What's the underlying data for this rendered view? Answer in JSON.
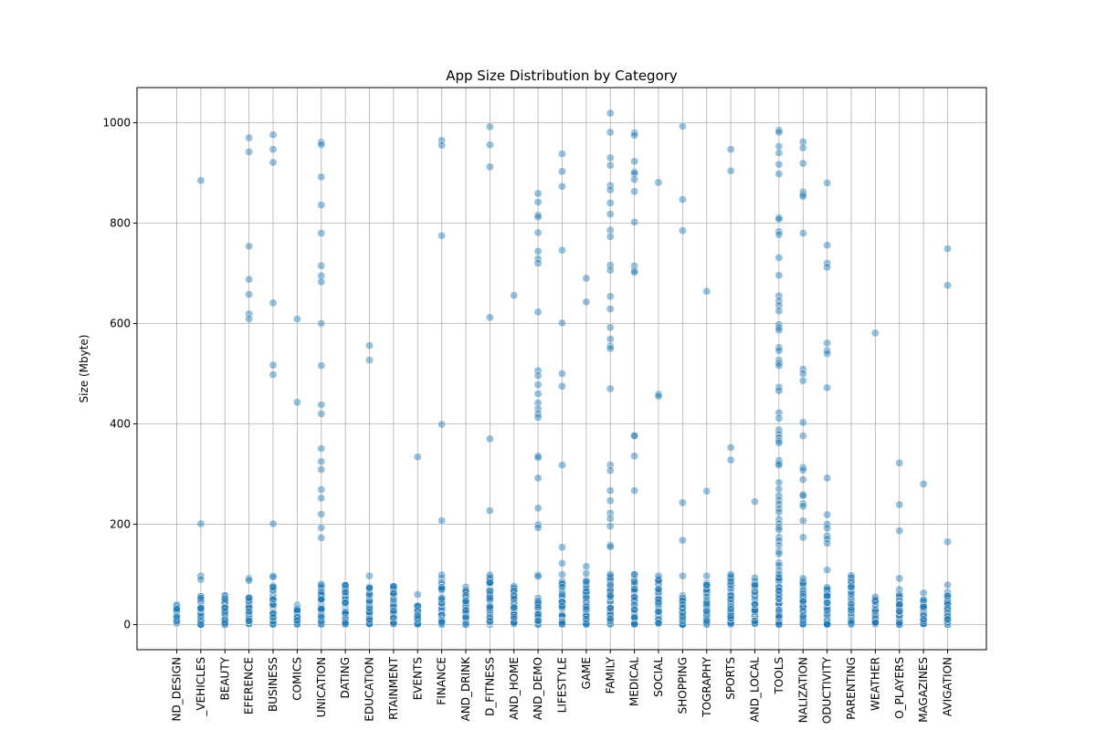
{
  "chart_data": {
    "type": "scatter",
    "title": "App Size Distribution by Category",
    "xlabel": "",
    "ylabel": "Size (Mbyte)",
    "ylim": [
      -50,
      1070
    ],
    "yticks": [
      0,
      200,
      400,
      600,
      800,
      1000
    ],
    "grid": true,
    "point_color": "#1f77b4",
    "categories": [
      "ART_AND_DESIGN",
      "AUTO_AND_VEHICLES",
      "BEAUTY",
      "BOOKS_AND_REFERENCE",
      "BUSINESS",
      "COMICS",
      "COMMUNICATION",
      "DATING",
      "EDUCATION",
      "ENTERTAINMENT",
      "EVENTS",
      "FINANCE",
      "FOOD_AND_DRINK",
      "HEALTH_AND_FITNESS",
      "HOUSE_AND_HOME",
      "LIBRARIES_AND_DEMO",
      "LIFESTYLE",
      "GAME",
      "FAMILY",
      "MEDICAL",
      "SOCIAL",
      "SHOPPING",
      "PHOTOGRAPHY",
      "SPORTS",
      "TRAVEL_AND_LOCAL",
      "TOOLS",
      "PERSONALIZATION",
      "PRODUCTIVITY",
      "PARENTING",
      "WEATHER",
      "VIDEO_PLAYERS",
      "NEWS_AND_MAGAZINES",
      "MAPS_AND_NAVIGATION"
    ],
    "tick_labels": [
      "ND_DESIGN",
      "_VEHICLES",
      "BEAUTY",
      "EFERENCE",
      "BUSINESS",
      "COMICS",
      "UNICATION",
      "DATING",
      "EDUCATION",
      "RTAINMENT",
      "EVENTS",
      "FINANCE",
      "AND_DRINK",
      "D_FITNESS",
      "AND_HOME",
      "AND_DEMO",
      "LIFESTYLE",
      "GAME",
      "FAMILY",
      "MEDICAL",
      "SOCIAL",
      "SHOPPING",
      "TOGRAPHY",
      "SPORTS",
      "AND_LOCAL",
      "TOOLS",
      "NALIZATION",
      "ODUCTIVITY",
      "PARENTING",
      "WEATHER",
      "O_PLAYERS",
      "MAGAZINES",
      "AVIGATION"
    ],
    "outliers": [
      [],
      [
        885,
        201,
        97,
        90
      ],
      [],
      [
        970,
        942,
        754,
        688,
        658,
        619,
        609,
        92,
        88
      ],
      [
        976,
        947,
        921,
        641,
        517,
        498,
        201,
        97,
        95
      ],
      [
        609,
        443
      ],
      [
        961,
        956,
        892,
        836,
        780,
        715,
        695,
        683,
        600,
        516,
        438,
        420,
        351,
        325,
        309,
        269,
        252,
        220,
        193,
        173
      ],
      [],
      [
        556,
        527,
        97
      ],
      [],
      [
        334,
        60
      ],
      [
        965,
        955,
        775,
        399,
        207,
        99
      ],
      [],
      [
        992,
        956,
        912,
        612,
        370,
        227,
        99
      ],
      [
        656
      ],
      [
        859,
        842,
        816,
        812,
        781,
        744,
        729,
        720,
        623,
        506,
        496,
        478,
        460,
        442,
        430,
        420,
        413,
        336,
        333,
        292,
        232,
        199,
        193,
        99,
        96
      ],
      [
        938,
        903,
        873,
        746,
        601,
        500,
        475,
        318,
        154,
        122,
        100
      ],
      [
        690,
        643,
        116,
        102
      ],
      [
        1019,
        981,
        930,
        915,
        875,
        866,
        840,
        818,
        786,
        773,
        716,
        706,
        654,
        629,
        592,
        569,
        555,
        550,
        470,
        318,
        307,
        267,
        247,
        222,
        211,
        196,
        158,
        155,
        100
      ],
      [
        980,
        975,
        923,
        902,
        899,
        887,
        863,
        802,
        715,
        705,
        702,
        377,
        376,
        336,
        267,
        100
      ],
      [
        881,
        459,
        455,
        97
      ],
      [
        993,
        847,
        785,
        243,
        168,
        97
      ],
      [
        664,
        266,
        97
      ],
      [
        947,
        904,
        353,
        328,
        100
      ],
      [
        245,
        93
      ],
      [
        985,
        981,
        953,
        940,
        917,
        898,
        811,
        808,
        783,
        777,
        731,
        696,
        655,
        645,
        636,
        625,
        598,
        592,
        587,
        552,
        546,
        527,
        521,
        516,
        473,
        466,
        422,
        411,
        388,
        379,
        372,
        366,
        362,
        327,
        321,
        318,
        283,
        270,
        257,
        248,
        240,
        231,
        224,
        210,
        201,
        194,
        189,
        174,
        167,
        158,
        146,
        141,
        123,
        118,
        108,
        100
      ],
      [
        962,
        950,
        919,
        862,
        857,
        853,
        780,
        509,
        500,
        486,
        403,
        376,
        313,
        308,
        289,
        259,
        257,
        241,
        236,
        207,
        174,
        92
      ],
      [
        880,
        756,
        720,
        712,
        561,
        546,
        540,
        472,
        292,
        219,
        200,
        192,
        177,
        171,
        162,
        109
      ],
      [
        98
      ],
      [
        581,
        55
      ],
      [
        322,
        239,
        187,
        92
      ],
      [
        280,
        63
      ],
      [
        749,
        676,
        165,
        79
      ]
    ],
    "dense_max": [
      40,
      60,
      58,
      55,
      80,
      40,
      82,
      80,
      82,
      80,
      40,
      95,
      75,
      95,
      80,
      55,
      95,
      100,
      100,
      100,
      95,
      60,
      90,
      100,
      90,
      100,
      90,
      80,
      95,
      50,
      70,
      50,
      65
    ]
  }
}
